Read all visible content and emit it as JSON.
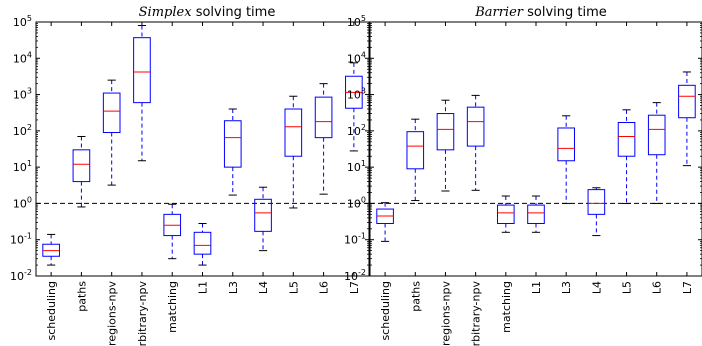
{
  "chart_data": [
    {
      "type": "boxplot",
      "title_emphasis": "Simplex",
      "title_rest": " solving time",
      "yscale": "log",
      "ylim": [
        0.01,
        100000
      ],
      "y_ticks": [
        {
          "base": "10",
          "exp": "-2"
        },
        {
          "base": "10",
          "exp": "-1"
        },
        {
          "base": "10",
          "exp": "0"
        },
        {
          "base": "10",
          "exp": "1"
        },
        {
          "base": "10",
          "exp": "2"
        },
        {
          "base": "10",
          "exp": "3"
        },
        {
          "base": "10",
          "exp": "4"
        },
        {
          "base": "10",
          "exp": "5"
        }
      ],
      "reference_line": 1,
      "grid": false,
      "categories": [
        "scheduling",
        "paths",
        "regions-npv",
        "arbitrary-npv",
        "matching",
        "L1",
        "L3",
        "L4",
        "L5",
        "L6",
        "L7"
      ],
      "boxes": [
        {
          "whislo": 0.02,
          "q1": 0.035,
          "med": 0.05,
          "q3": 0.075,
          "whishi": 0.14
        },
        {
          "whislo": 0.8,
          "q1": 4,
          "med": 12,
          "q3": 30,
          "whishi": 70
        },
        {
          "whislo": 3.2,
          "q1": 90,
          "med": 350,
          "q3": 1100,
          "whishi": 2500
        },
        {
          "whislo": 15,
          "q1": 600,
          "med": 4200,
          "q3": 37000,
          "whishi": 80000
        },
        {
          "whislo": 0.03,
          "q1": 0.13,
          "med": 0.25,
          "q3": 0.5,
          "whishi": 0.95
        },
        {
          "whislo": 0.02,
          "q1": 0.04,
          "med": 0.07,
          "q3": 0.16,
          "whishi": 0.28
        },
        {
          "whislo": 1.7,
          "q1": 10,
          "med": 65,
          "q3": 190,
          "whishi": 400
        },
        {
          "whislo": 0.05,
          "q1": 0.17,
          "med": 0.55,
          "q3": 1.3,
          "whishi": 2.8
        },
        {
          "whislo": 0.75,
          "q1": 20,
          "med": 130,
          "q3": 400,
          "whishi": 900
        },
        {
          "whislo": 1.8,
          "q1": 65,
          "med": 180,
          "q3": 850,
          "whishi": 2000
        },
        {
          "whislo": 28,
          "q1": 420,
          "med": 1150,
          "q3": 3200,
          "whishi": 7500
        }
      ]
    },
    {
      "type": "boxplot",
      "title_emphasis": "Barrier",
      "title_rest": " solving time",
      "yscale": "log",
      "ylim": [
        0.01,
        100000
      ],
      "y_ticks": [
        {
          "base": "10",
          "exp": "-2"
        },
        {
          "base": "10",
          "exp": "-1"
        },
        {
          "base": "10",
          "exp": "0"
        },
        {
          "base": "10",
          "exp": "1"
        },
        {
          "base": "10",
          "exp": "2"
        },
        {
          "base": "10",
          "exp": "3"
        },
        {
          "base": "10",
          "exp": "4"
        },
        {
          "base": "10",
          "exp": "5"
        }
      ],
      "reference_line": 1,
      "grid": false,
      "categories": [
        "scheduling",
        "paths",
        "regions-npv",
        "arbitrary-npv",
        "matching",
        "L1",
        "L3",
        "L4",
        "L5",
        "L6",
        "L7"
      ],
      "boxes": [
        {
          "whislo": 0.09,
          "q1": 0.28,
          "med": 0.45,
          "q3": 0.7,
          "whishi": 1.05
        },
        {
          "whislo": 1.2,
          "q1": 9,
          "med": 38,
          "q3": 95,
          "whishi": 210
        },
        {
          "whislo": 2.2,
          "q1": 30,
          "med": 110,
          "q3": 300,
          "whishi": 700
        },
        {
          "whislo": 2.3,
          "q1": 38,
          "med": 180,
          "q3": 450,
          "whishi": 950
        },
        {
          "whislo": 0.16,
          "q1": 0.28,
          "med": 0.55,
          "q3": 0.9,
          "whishi": 1.6
        },
        {
          "whislo": 0.16,
          "q1": 0.28,
          "med": 0.55,
          "q3": 0.9,
          "whishi": 1.6
        },
        {
          "whislo": 1.0,
          "q1": 15,
          "med": 33,
          "q3": 120,
          "whishi": 260
        },
        {
          "whislo": 0.13,
          "q1": 0.5,
          "med": 1.0,
          "q3": 2.4,
          "whishi": 2.7
        },
        {
          "whislo": 1.0,
          "q1": 20,
          "med": 70,
          "q3": 170,
          "whishi": 380
        },
        {
          "whislo": 1.0,
          "q1": 22,
          "med": 110,
          "q3": 270,
          "whishi": 600
        },
        {
          "whislo": 11,
          "q1": 230,
          "med": 900,
          "q3": 1800,
          "whishi": 4200
        }
      ]
    }
  ],
  "colors": {
    "box": "#0000ff",
    "median": "#ff0000",
    "whisker": "#0000ff",
    "cap": "#000000",
    "reference_line": "#000000",
    "axes": "#000000"
  }
}
